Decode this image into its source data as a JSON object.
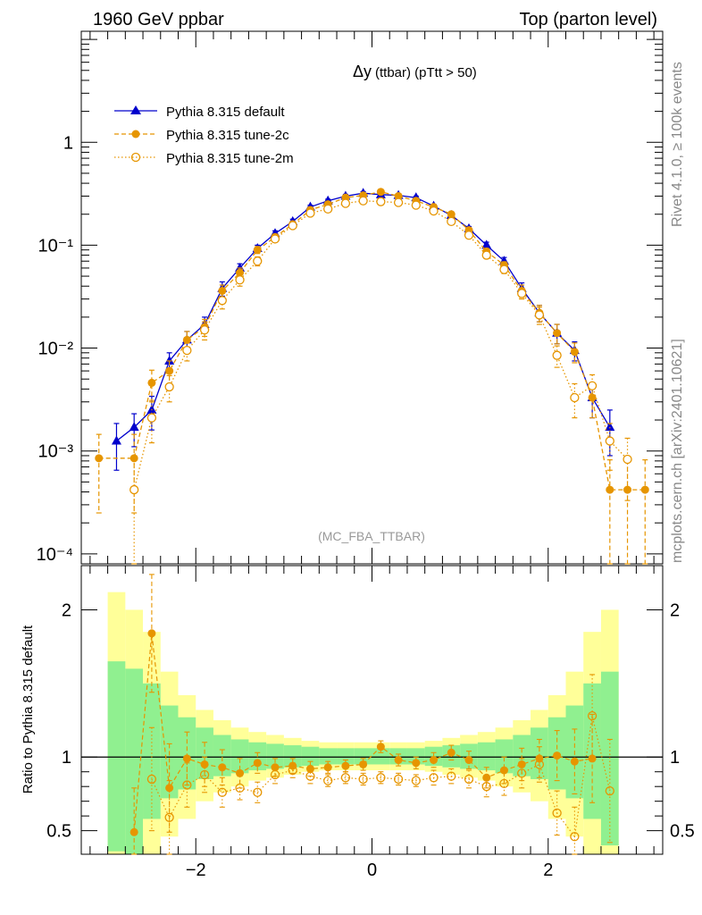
{
  "header": {
    "left": "1960 GeV ppbar",
    "right": "Top (parton level)"
  },
  "side_labels": {
    "rivet": "Rivet 4.1.0, ≥ 100k events",
    "mcplots": "mcplots.cern.ch [arXiv:2401.10621]"
  },
  "plot_title": {
    "main": "Δy",
    "sub": "(ttbar) (pTtt > 50)"
  },
  "watermark": "(MC_FBA_TTBAR)",
  "ratio_ylabel": "Ratio to Pythia 8.315 default",
  "colors": {
    "default": "#0000cc",
    "tune": "#e69500",
    "band_inner": "#90f090",
    "band_outer": "#ffff99"
  },
  "chart_data": [
    {
      "type": "line",
      "panel": "main",
      "title": "Δy (ttbar) (pTtt > 50)",
      "yscale": "log",
      "xlim": [
        -3.3,
        3.3
      ],
      "ylim": [
        8e-05,
        12
      ],
      "yticks": [
        {
          "value": 1,
          "label": "1"
        },
        {
          "value": 0.1,
          "label": "10⁻¹"
        },
        {
          "value": 0.01,
          "label": "10⁻²"
        },
        {
          "value": 0.001,
          "label": "10⁻³"
        },
        {
          "value": 0.0001,
          "label": "10⁻⁴"
        }
      ],
      "legend": [
        {
          "label": "Pythia 8.315 default",
          "style": "blue-triangle-solid"
        },
        {
          "label": "Pythia 8.315 tune-2c",
          "style": "orange-dot-dashed"
        },
        {
          "label": "Pythia 8.315 tune-2m",
          "style": "orange-open-dotted"
        }
      ],
      "series": [
        {
          "name": "Pythia 8.315 default",
          "x": [
            -2.9,
            -2.7,
            -2.5,
            -2.3,
            -2.1,
            -1.9,
            -1.7,
            -1.5,
            -1.3,
            -1.1,
            -0.9,
            -0.7,
            -0.5,
            -0.3,
            -0.1,
            0.1,
            0.3,
            0.5,
            0.7,
            0.9,
            1.1,
            1.3,
            1.5,
            1.7,
            1.9,
            2.1,
            2.3,
            2.5,
            2.7
          ],
          "y": [
            0.00125,
            0.0017,
            0.0025,
            0.0075,
            0.012,
            0.017,
            0.038,
            0.06,
            0.093,
            0.13,
            0.17,
            0.235,
            0.27,
            0.3,
            0.32,
            0.31,
            0.305,
            0.29,
            0.24,
            0.195,
            0.145,
            0.1,
            0.07,
            0.038,
            0.022,
            0.014,
            0.0095,
            0.0033,
            0.0017
          ],
          "err": [
            0.0006,
            0.0006,
            0.0009,
            0.0015,
            0.0025,
            0.003,
            0.006,
            0.006,
            0.007,
            0.008,
            0.009,
            0.01,
            0.01,
            0.012,
            0.012,
            0.012,
            0.011,
            0.01,
            0.01,
            0.008,
            0.007,
            0.007,
            0.006,
            0.005,
            0.004,
            0.003,
            0.002,
            0.0012,
            0.0008
          ]
        },
        {
          "name": "Pythia 8.315 tune-2c",
          "x": [
            -3.1,
            -2.7,
            -2.5,
            -2.3,
            -2.1,
            -1.9,
            -1.7,
            -1.5,
            -1.3,
            -1.1,
            -0.9,
            -0.7,
            -0.5,
            -0.3,
            -0.1,
            0.1,
            0.3,
            0.5,
            0.7,
            0.9,
            1.1,
            1.3,
            1.5,
            1.7,
            1.9,
            2.1,
            2.3,
            2.5,
            2.7,
            2.9,
            3.1
          ],
          "y": [
            0.00085,
            0.00085,
            0.0046,
            0.006,
            0.012,
            0.016,
            0.036,
            0.054,
            0.09,
            0.12,
            0.16,
            0.22,
            0.25,
            0.29,
            0.305,
            0.33,
            0.3,
            0.27,
            0.235,
            0.2,
            0.14,
            0.087,
            0.064,
            0.036,
            0.022,
            0.014,
            0.0092,
            0.0033,
            0.00042,
            0.00042,
            0.00042
          ],
          "err": [
            0.0006,
            0.0006,
            0.0015,
            0.0015,
            0.0025,
            0.003,
            0.005,
            0.006,
            0.007,
            0.008,
            0.009,
            0.01,
            0.01,
            0.012,
            0.012,
            0.012,
            0.011,
            0.01,
            0.01,
            0.008,
            0.007,
            0.006,
            0.005,
            0.005,
            0.004,
            0.003,
            0.002,
            0.0012,
            0.0004,
            0.0004,
            0.0004
          ]
        },
        {
          "name": "Pythia 8.315 tune-2m",
          "x": [
            -2.7,
            -2.5,
            -2.3,
            -2.1,
            -1.9,
            -1.7,
            -1.5,
            -1.3,
            -1.1,
            -0.9,
            -0.7,
            -0.5,
            -0.3,
            -0.1,
            0.1,
            0.3,
            0.5,
            0.7,
            0.9,
            1.1,
            1.3,
            1.5,
            1.7,
            1.9,
            2.1,
            2.3,
            2.5,
            2.7,
            2.9
          ],
          "y": [
            0.00042,
            0.0021,
            0.0042,
            0.0095,
            0.015,
            0.029,
            0.046,
            0.07,
            0.115,
            0.155,
            0.205,
            0.225,
            0.255,
            0.27,
            0.265,
            0.26,
            0.245,
            0.215,
            0.17,
            0.125,
            0.08,
            0.058,
            0.034,
            0.021,
            0.0085,
            0.0033,
            0.0043,
            0.00125,
            0.00083
          ],
          "err": [
            0.0004,
            0.0009,
            0.0012,
            0.002,
            0.003,
            0.005,
            0.006,
            0.007,
            0.008,
            0.009,
            0.01,
            0.01,
            0.011,
            0.011,
            0.011,
            0.011,
            0.01,
            0.009,
            0.008,
            0.007,
            0.006,
            0.005,
            0.004,
            0.004,
            0.002,
            0.0012,
            0.0012,
            0.0006,
            0.0005
          ]
        }
      ]
    },
    {
      "type": "line",
      "panel": "ratio",
      "ylabel": "Ratio to Pythia 8.315 default",
      "xlim": [
        -3.3,
        3.3
      ],
      "ylim": [
        0.34,
        2.3
      ],
      "xticks": [
        {
          "value": -2,
          "label": "−2"
        },
        {
          "value": 0,
          "label": "0"
        },
        {
          "value": 2,
          "label": "2"
        }
      ],
      "yticks": [
        {
          "value": 2,
          "label": "2"
        },
        {
          "value": 1,
          "label": "1"
        },
        {
          "value": 0.5,
          "label": "0.5"
        }
      ],
      "band_edges": [
        -3.0,
        -2.8,
        -2.6,
        -2.4,
        -2.2,
        -2.0,
        -1.8,
        -1.6,
        -1.4,
        -1.2,
        -1.0,
        -0.8,
        -0.6,
        -0.4,
        -0.2,
        0.0,
        0.2,
        0.4,
        0.6,
        0.8,
        1.0,
        1.2,
        1.4,
        1.6,
        1.8,
        2.0,
        2.2,
        2.4,
        2.6,
        2.8
      ],
      "band_inner": [
        [
          0.36,
          1.65
        ],
        [
          0.33,
          1.6
        ],
        [
          0.58,
          1.5
        ],
        [
          0.72,
          1.35
        ],
        [
          0.78,
          1.27
        ],
        [
          0.85,
          1.2
        ],
        [
          0.87,
          1.15
        ],
        [
          0.89,
          1.12
        ],
        [
          0.91,
          1.1
        ],
        [
          0.92,
          1.09
        ],
        [
          0.93,
          1.08
        ],
        [
          0.94,
          1.07
        ],
        [
          0.95,
          1.06
        ],
        [
          0.95,
          1.06
        ],
        [
          0.95,
          1.06
        ],
        [
          0.95,
          1.06
        ],
        [
          0.95,
          1.06
        ],
        [
          0.95,
          1.06
        ],
        [
          0.94,
          1.07
        ],
        [
          0.93,
          1.08
        ],
        [
          0.92,
          1.09
        ],
        [
          0.91,
          1.1
        ],
        [
          0.89,
          1.12
        ],
        [
          0.87,
          1.15
        ],
        [
          0.85,
          1.2
        ],
        [
          0.78,
          1.27
        ],
        [
          0.72,
          1.35
        ],
        [
          0.58,
          1.5
        ],
        [
          0.4,
          1.58
        ]
      ],
      "band_outer": [
        [
          0.3,
          2.12
        ],
        [
          0.3,
          2.0
        ],
        [
          0.3,
          1.85
        ],
        [
          0.46,
          1.58
        ],
        [
          0.58,
          1.42
        ],
        [
          0.7,
          1.32
        ],
        [
          0.76,
          1.25
        ],
        [
          0.8,
          1.2
        ],
        [
          0.84,
          1.17
        ],
        [
          0.86,
          1.15
        ],
        [
          0.88,
          1.13
        ],
        [
          0.9,
          1.11
        ],
        [
          0.91,
          1.1
        ],
        [
          0.91,
          1.1
        ],
        [
          0.91,
          1.1
        ],
        [
          0.91,
          1.1
        ],
        [
          0.91,
          1.1
        ],
        [
          0.91,
          1.1
        ],
        [
          0.9,
          1.11
        ],
        [
          0.88,
          1.13
        ],
        [
          0.86,
          1.15
        ],
        [
          0.84,
          1.17
        ],
        [
          0.8,
          1.2
        ],
        [
          0.76,
          1.25
        ],
        [
          0.7,
          1.32
        ],
        [
          0.58,
          1.42
        ],
        [
          0.46,
          1.58
        ],
        [
          0.3,
          1.85
        ],
        [
          0.3,
          2.0
        ]
      ],
      "series": [
        {
          "name": "Pythia 8.315 tune-2c",
          "x": [
            -2.7,
            -2.5,
            -2.3,
            -2.1,
            -1.9,
            -1.7,
            -1.5,
            -1.3,
            -1.1,
            -0.9,
            -0.7,
            -0.5,
            -0.3,
            -0.1,
            0.1,
            0.3,
            0.5,
            0.7,
            0.9,
            1.1,
            1.3,
            1.5,
            1.7,
            1.9,
            2.1,
            2.3,
            2.5
          ],
          "y": [
            0.49,
            1.84,
            0.79,
            0.99,
            0.95,
            0.93,
            0.89,
            0.96,
            0.93,
            0.94,
            0.92,
            0.93,
            0.94,
            0.95,
            1.07,
            0.98,
            0.96,
            0.98,
            1.03,
            0.98,
            0.86,
            0.91,
            0.95,
            0.99,
            1.01,
            0.97,
            0.99
          ],
          "err": [
            0.3,
            0.4,
            0.3,
            0.18,
            0.15,
            0.12,
            0.1,
            0.07,
            0.06,
            0.05,
            0.05,
            0.04,
            0.04,
            0.04,
            0.04,
            0.04,
            0.04,
            0.05,
            0.05,
            0.06,
            0.07,
            0.09,
            0.11,
            0.13,
            0.17,
            0.22,
            0.3
          ]
        },
        {
          "name": "Pythia 8.315 tune-2m",
          "x": [
            -2.5,
            -2.3,
            -2.1,
            -1.9,
            -1.7,
            -1.5,
            -1.3,
            -1.1,
            -0.9,
            -0.7,
            -0.5,
            -0.3,
            -0.1,
            0.1,
            0.3,
            0.5,
            0.7,
            0.9,
            1.1,
            1.3,
            1.5,
            1.7,
            1.9,
            2.1,
            2.3,
            2.5,
            2.7
          ],
          "y": [
            0.85,
            0.59,
            0.81,
            0.88,
            0.76,
            0.79,
            0.76,
            0.88,
            0.91,
            0.87,
            0.84,
            0.86,
            0.85,
            0.86,
            0.85,
            0.84,
            0.86,
            0.87,
            0.85,
            0.8,
            0.82,
            0.89,
            0.95,
            0.62,
            0.46,
            1.28,
            0.77
          ],
          "err": [
            0.35,
            0.25,
            0.15,
            0.12,
            0.1,
            0.08,
            0.07,
            0.06,
            0.05,
            0.05,
            0.04,
            0.04,
            0.04,
            0.04,
            0.04,
            0.04,
            0.05,
            0.05,
            0.06,
            0.07,
            0.08,
            0.1,
            0.12,
            0.15,
            0.2,
            0.28,
            0.35
          ]
        }
      ]
    }
  ]
}
